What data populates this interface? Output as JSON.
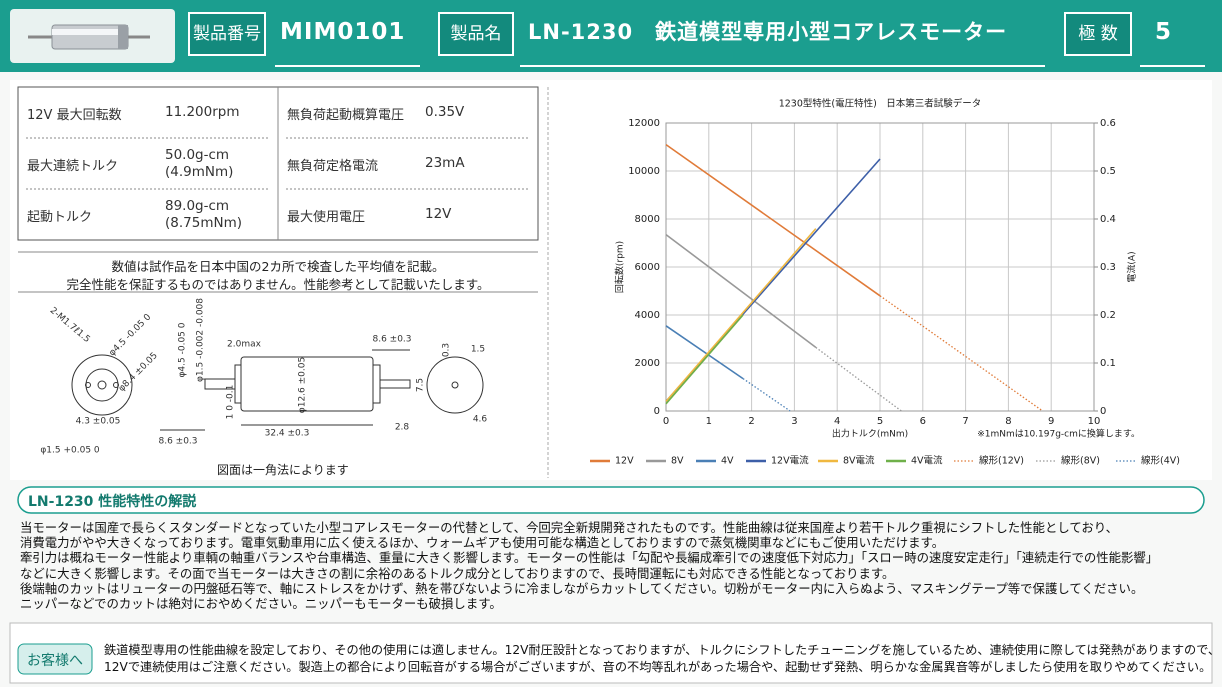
{
  "header": {
    "product_no_label": "製品番号",
    "product_no": "MIM0101",
    "product_name_label": "製品名",
    "product_name": "LN-1230　鉄道模型専用小型コアレスモーター",
    "poles_label": "極 数",
    "poles": "5"
  },
  "specs": [
    {
      "label": "12V 最大回転数",
      "value": [
        "11.200rpm"
      ]
    },
    {
      "label": "最大連続トルク",
      "value": [
        "50.0g-cm",
        "(4.9mNm)"
      ]
    },
    {
      "label": "起動トルク",
      "value": [
        "89.0g-cm",
        "(8.75mNm)"
      ]
    },
    {
      "label": "無負荷起動概算電圧",
      "value": [
        "0.35V"
      ]
    },
    {
      "label": "無負荷定格電流",
      "value": [
        "23mA"
      ]
    },
    {
      "label": "最大使用電圧",
      "value": [
        "12V"
      ]
    }
  ],
  "notes": [
    "数値は試作品を日本中国の2カ所で検査した平均値を記載。",
    "完全性能を保証するものではありません。性能参考として記載いたします。"
  ],
  "drawing": {
    "labels": [
      "2-M1.7ℓ1.5",
      "φ4.5 -0.05 0",
      "φ8.4 ±0.05",
      "4.3 ±0.05",
      "φ1.5 +0.05 0",
      "φ4.5 -0.05 0",
      "φ1.5 -0.002 -0.008",
      "2.0max",
      "1 0 -0.1",
      "φ12.6 ±0.05",
      "8.6 ±0.3",
      "32.4 ±0.3",
      "8.6 ±0.3",
      "2.8",
      "0.3",
      "1.5",
      "7.5",
      "4.6"
    ],
    "caption": "図面は一角法によります"
  },
  "chart_data": {
    "type": "line",
    "title": "1230型特性(電圧特性)　日本第三者試験データ",
    "x_label": "出力トルク(mNm)",
    "y_label": "回転数(rpm)",
    "y2_label": "電流(A)",
    "note": "※1mNmは10.197g-cmに換算します。",
    "xlim": [
      0,
      10
    ],
    "xticks": [
      0,
      1,
      2,
      3,
      4,
      5,
      6,
      7,
      8,
      9,
      10
    ],
    "ylim": [
      0,
      12000
    ],
    "yticks": [
      0,
      2000,
      4000,
      6000,
      8000,
      10000,
      12000
    ],
    "y2lim": [
      0,
      0.6
    ],
    "y2ticks": [
      0,
      0.1,
      0.2,
      0.3,
      0.4,
      0.5,
      0.6
    ],
    "grid": true,
    "series": [
      {
        "name": "12V",
        "color": "#e07b39",
        "x": [
          0,
          5
        ],
        "values": [
          11100,
          4800
        ]
      },
      {
        "name": "8V",
        "color": "#999999",
        "x": [
          0,
          3.5
        ],
        "values": [
          7350,
          2650
        ]
      },
      {
        "name": "4V",
        "color": "#4a7fb5",
        "x": [
          0,
          1.8
        ],
        "values": [
          3550,
          1350
        ]
      },
      {
        "name": "12V電流",
        "color": "#3d5fa8",
        "axis": "y2",
        "x": [
          0,
          5
        ],
        "values": [
          0.02,
          0.525
        ]
      },
      {
        "name": "8V電流",
        "color": "#f0b840",
        "axis": "y2",
        "x": [
          0,
          3.5
        ],
        "values": [
          0.02,
          0.38
        ]
      },
      {
        "name": "4V電流",
        "color": "#6fb04a",
        "axis": "y2",
        "x": [
          0,
          1.8
        ],
        "values": [
          0.015,
          0.2
        ]
      },
      {
        "name": "線形(12V)",
        "color": "#e07b39",
        "dash": true,
        "x": [
          5,
          8.8
        ],
        "values": [
          4800,
          0
        ]
      },
      {
        "name": "線形(8V)",
        "color": "#999999",
        "dash": true,
        "x": [
          3.5,
          5.5
        ],
        "values": [
          2650,
          0
        ]
      },
      {
        "name": "線形(4V)",
        "color": "#4a7fb5",
        "dash": true,
        "x": [
          1.8,
          2.9
        ],
        "values": [
          1350,
          0
        ]
      }
    ]
  },
  "section": {
    "title": "LN-1230 性能特性の解説",
    "lines": [
      "当モーターは国産で長らくスタンダードとなっていた小型コアレスモーターの代替として、今回完全新規開発されたものです。性能曲線は従来国産より若干トルク重視にシフトした性能としており、",
      "消費電力がやや大きくなっております。電車気動車用に広く使えるほか、ウォームギアも使用可能な構造としておりますので蒸気機関車などにもご使用いただけます。",
      "牽引力は概ねモーター性能より車輌の軸重バランスや台車構造、重量に大きく影響します。モーターの性能は「勾配や長編成牽引での速度低下対応力」「スロー時の速度安定走行」「連続走行での性能影響」",
      "などに大きく影響します。その面で当モーターは大きさの割に余裕のあるトルク成分としておりますので、長時間運転にも対応できる性能となっております。",
      "後端軸のカットはリューターの円盤砥石等で、軸にストレスをかけず、熱を帯びないように冷ましながらカットしてください。切粉がモーター内に入らぬよう、マスキングテープ等で保護してください。",
      "ニッパーなどでのカットは絶対におやめください。ニッパーもモーターも破損します。"
    ]
  },
  "customer": {
    "label": "お客様へ",
    "lines": [
      "鉄道模型専用の性能曲線を設定しており、その他の使用には適しません。12V耐圧設計となっておりますが、トルクにシフトしたチューニングを施しているため、連続使用に際しては発熱がありますので、",
      "12Vで連続使用はご注意ください。製造上の都合により回転音がする場合がございますが、音の不均等乱れがあった場合や、起動せず発熱、明らかな金属異音等がしましたら使用を取りやめてください。"
    ]
  }
}
